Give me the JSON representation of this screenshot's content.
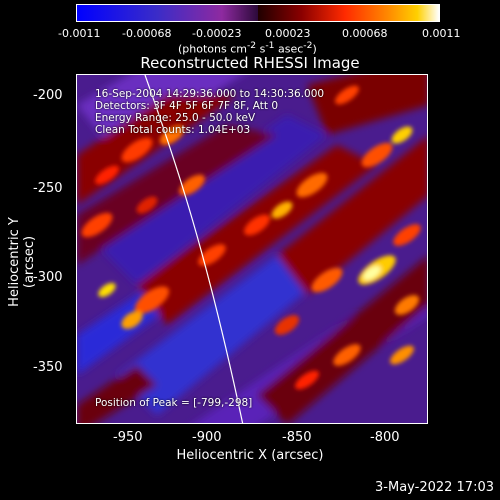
{
  "colorbar": {
    "ticks": [
      "-0.0011",
      "-0.00068",
      "-0.00023",
      "0.00023",
      "0.00068",
      "0.0011"
    ],
    "units_prefix": "(photons cm",
    "units_exp1": "-2",
    "units_mid1": " s",
    "units_exp2": "-1",
    "units_mid2": " asec",
    "units_exp3": "-2",
    "units_suffix": ")"
  },
  "plot": {
    "title": "Reconstructed RHESSI Image",
    "annotations": {
      "time": "16-Sep-2004 14:29:36.000 to 14:30:36.000",
      "detectors": "Detectors: 3F 4F 5F 6F 7F 8F, Att 0",
      "energy": "Energy Range: 25.0 - 50.0 keV",
      "clean": "Clean    Total counts: 1.04E+03",
      "peak": "Position of Peak = [-799,-298]"
    },
    "yticks": [
      "-200",
      "-250",
      "-300",
      "-350"
    ],
    "xticks": [
      "-950",
      "-900",
      "-850",
      "-800"
    ],
    "ylabel": "Heliocentric Y (arcsec)",
    "xlabel": "Heliocentric X (arcsec)"
  },
  "footer": {
    "date": "3-May-2022 17:03"
  }
}
